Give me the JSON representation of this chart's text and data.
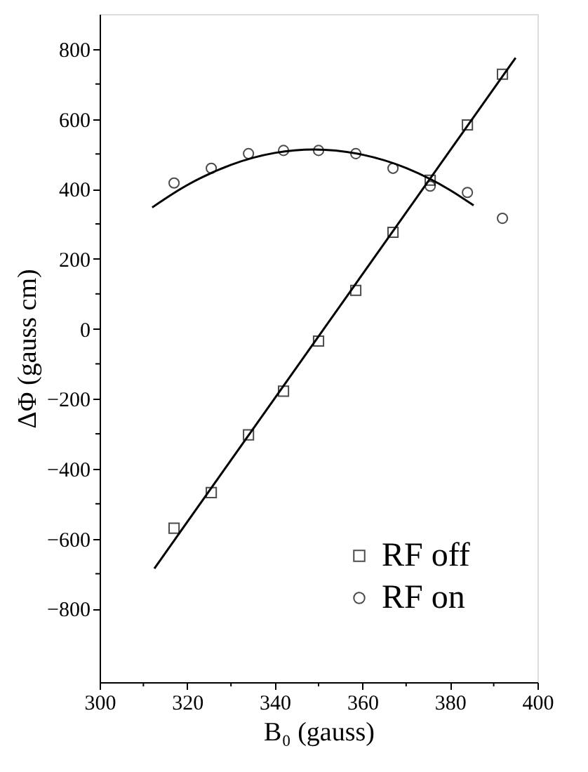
{
  "chart_data": {
    "type": "scatter",
    "xlabel": "B₀ (gauss)",
    "ylabel": "ΔΦ (gauss cm)",
    "xlim": [
      300,
      400
    ],
    "ylim": [
      -1010,
      900
    ],
    "xticks": [
      300,
      {
        "value": 310,
        "label": null
      },
      320,
      {
        "value": 330,
        "label": null
      },
      340,
      {
        "value": 350,
        "label": null
      },
      360,
      {
        "value": 370,
        "label": null
      },
      380,
      {
        "value": 390,
        "label": null
      },
      400
    ],
    "yticks": [
      -800,
      {
        "value": -700,
        "label": null
      },
      -600,
      {
        "value": -500,
        "label": null
      },
      -400,
      {
        "value": -300,
        "label": null
      },
      -200,
      {
        "value": -100,
        "label": null
      },
      0,
      {
        "value": 100,
        "label": null
      },
      200,
      {
        "value": 300,
        "label": null
      },
      400,
      {
        "value": 500,
        "label": null
      },
      600,
      {
        "value": 700,
        "label": null
      },
      800
    ],
    "grid": false,
    "legend": "bottom right",
    "series": [
      {
        "name": "RF off",
        "color": "#000000",
        "marker": "square",
        "x": [
          317,
          325.5,
          334,
          342,
          350,
          358.5,
          367,
          375.5,
          384,
          392
        ],
        "values": [
          -570,
          -468,
          -303,
          -178,
          -35,
          110,
          276,
          425,
          583,
          728
        ]
      },
      {
        "name": "RF on",
        "color": "#000000",
        "marker": "circle",
        "x": [
          317,
          325.5,
          334,
          342,
          350,
          358.5,
          367,
          375.5,
          384,
          392
        ],
        "values": [
          417,
          459,
          501,
          510,
          510,
          501,
          459,
          408,
          390,
          316
        ]
      },
      {
        "type": "line",
        "color": "#000000",
        "line_style": "solid",
        "marker": "none",
        "x": [
          312.5,
          395
        ],
        "values": [
          -685,
          775
        ]
      },
      {
        "type": "line",
        "color": "#000000",
        "line_style": "solid",
        "marker": "none",
        "x": [
          312,
          320,
          330,
          340,
          349,
          360,
          370,
          380,
          385.4
        ],
        "values": [
          347,
          411,
          469,
          503,
          513,
          498,
          460,
          397,
          353
        ]
      }
    ]
  }
}
